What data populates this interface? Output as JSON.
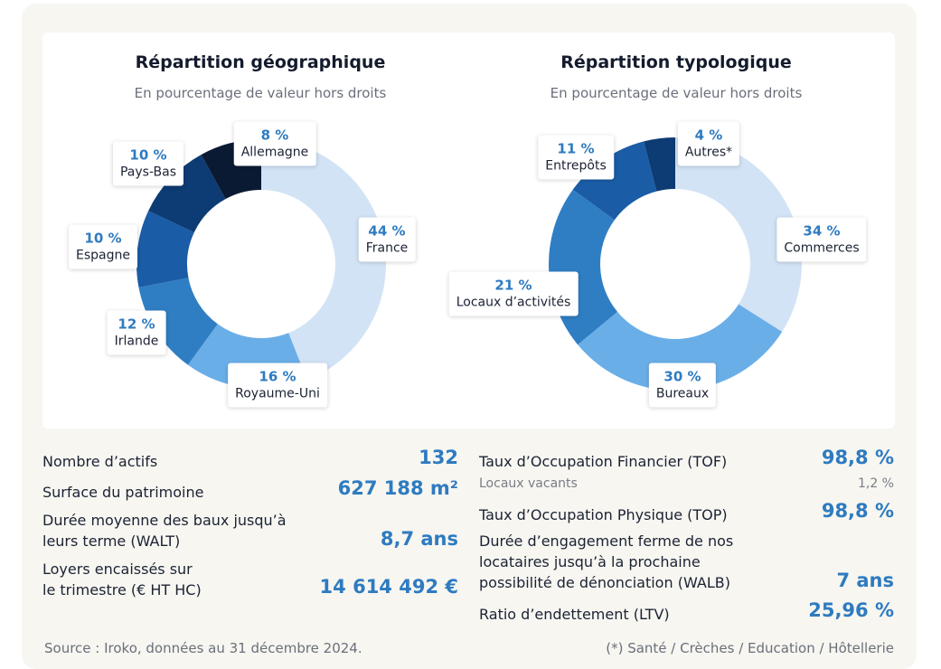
{
  "chart_data": [
    {
      "type": "pie",
      "title": "Répartition géographique",
      "subtitle": "En pourcentage de valeur hors droits",
      "categories": [
        "France",
        "Royaume-Uni",
        "Irlande",
        "Espagne",
        "Pays-Bas",
        "Allemagne"
      ],
      "values": [
        44,
        16,
        12,
        10,
        10,
        8
      ],
      "value_labels": [
        "44 %",
        "16 %",
        "12 %",
        "10 %",
        "10 %",
        "8 %"
      ],
      "colors": [
        "#d2e3f5",
        "#6aaee8",
        "#2f7ec4",
        "#1a5ca6",
        "#0d3b73",
        "#0b1a33"
      ]
    },
    {
      "type": "pie",
      "title": "Répartition typologique",
      "subtitle": "En pourcentage de valeur hors droits",
      "categories": [
        "Commerces",
        "Bureaux",
        "Locaux d’activités",
        "Entrepôts",
        "Autres*"
      ],
      "values": [
        34,
        30,
        21,
        11,
        4
      ],
      "value_labels": [
        "34 %",
        "30 %",
        "21 %",
        "11 %",
        "4 %"
      ],
      "colors": [
        "#d2e3f5",
        "#6aaee8",
        "#2f7ec4",
        "#1a5ca6",
        "#0d3b73"
      ]
    }
  ],
  "stats_left": [
    {
      "label": "Nombre d’actifs",
      "value": "132"
    },
    {
      "label": "Surface du patrimoine",
      "value": "627 188 m²"
    },
    {
      "label": "Durée moyenne des baux jusqu’à",
      "label2": "leurs terme (WALT)",
      "value": "8,7 ans"
    },
    {
      "label": "Loyers encaissés sur",
      "label2": "le trimestre (€ HT HC)",
      "value": "14 614 492 €"
    }
  ],
  "stats_right": [
    {
      "label": "Taux d’Occupation Financier (TOF)",
      "value": "98,8 %"
    },
    {
      "label": "Locaux vacants",
      "value": "1,2 %"
    },
    {
      "label": "Taux d’Occupation Physique (TOP)",
      "value": "98,8 %"
    },
    {
      "label": "Durée d’engagement ferme de nos",
      "label2": "locataires jusqu’à la prochaine",
      "label3": "possibilité de dénonciation (WALB)",
      "value": "7 ans"
    },
    {
      "label": "Ratio d’endettement (LTV)",
      "value": "25,96 %"
    }
  ],
  "footer": {
    "source": "Source : Iroko, données au 31 décembre 2024.",
    "note": "(*) Santé / Crèches / Education / Hôtellerie"
  }
}
